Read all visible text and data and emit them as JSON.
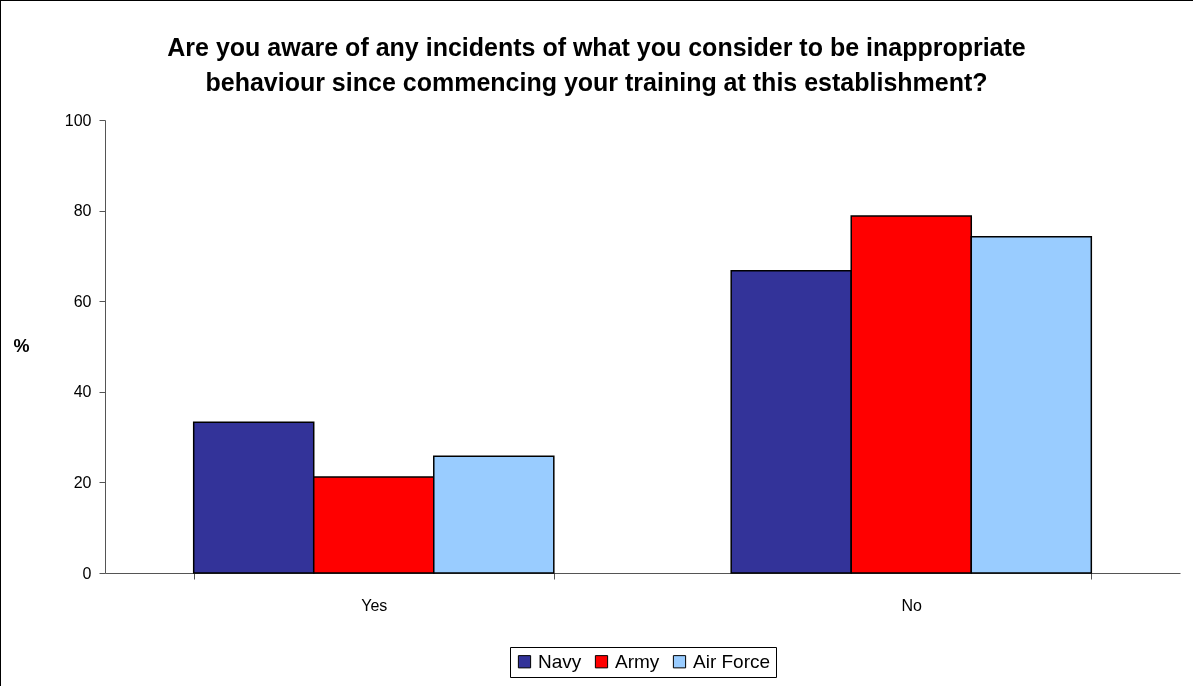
{
  "chart_data": {
    "type": "bar",
    "title": "Are you aware of any incidents of what you consider to be inappropriate behaviour since commencing your training at this establishment?",
    "ylabel": "%",
    "categories": [
      "Yes",
      "No"
    ],
    "series": [
      {
        "name": "Navy",
        "color": "#333399",
        "values": [
          33.3,
          66.7
        ]
      },
      {
        "name": "Army",
        "color": "#ff0000",
        "values": [
          21.2,
          78.8
        ]
      },
      {
        "name": "Air Force",
        "color": "#99ccff",
        "values": [
          25.8,
          74.2
        ]
      }
    ],
    "ylim": [
      0,
      100
    ],
    "yticks": [
      0,
      20,
      40,
      60,
      80,
      100
    ],
    "legend": "bottom"
  }
}
